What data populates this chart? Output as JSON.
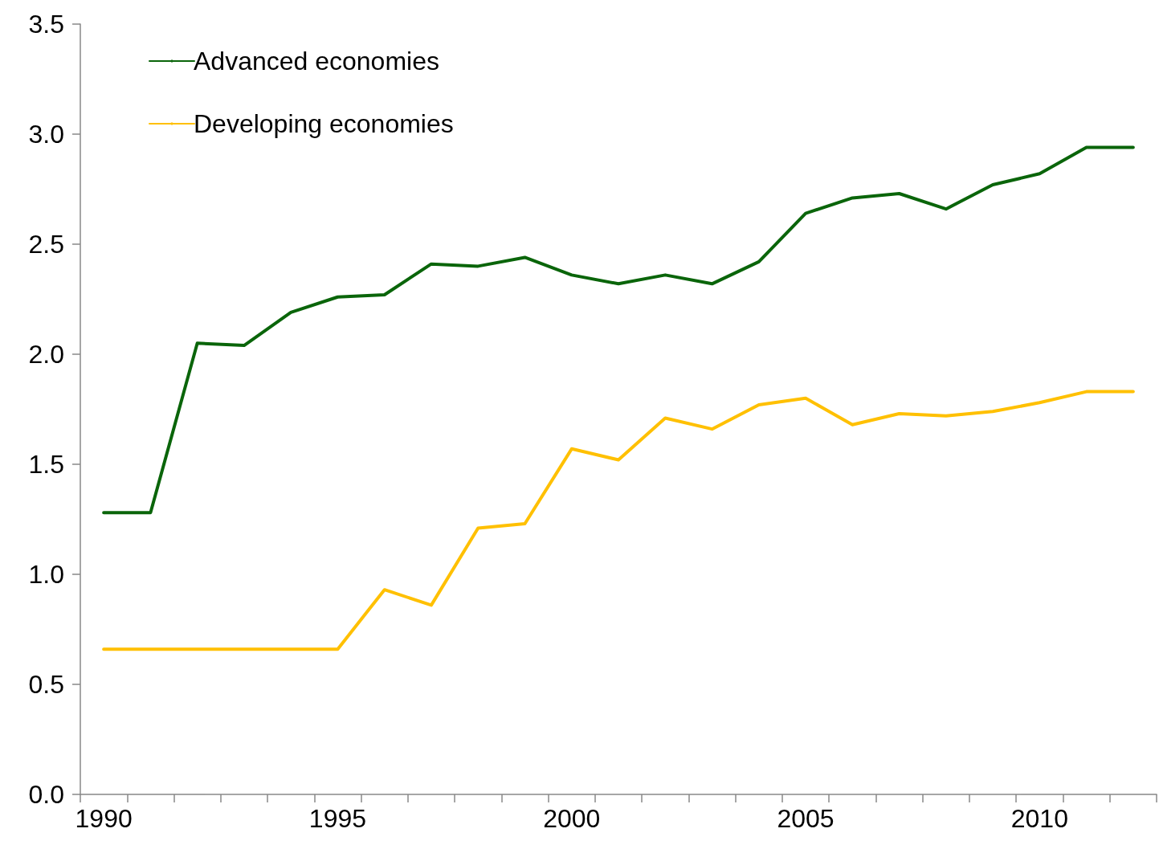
{
  "chart_data": {
    "type": "line",
    "categories": [
      "1990",
      null,
      null,
      null,
      null,
      "1995",
      null,
      null,
      null,
      null,
      "2000",
      null,
      null,
      null,
      null,
      "2005",
      null,
      null,
      null,
      null,
      "2010",
      null,
      null
    ],
    "series": [
      {
        "name": "Advanced economies",
        "color": "#0a650a",
        "values": [
          1.28,
          1.28,
          2.05,
          2.04,
          2.19,
          2.26,
          2.27,
          2.41,
          2.4,
          2.44,
          2.36,
          2.32,
          2.36,
          2.32,
          2.42,
          2.64,
          2.71,
          2.73,
          2.66,
          2.77,
          2.82,
          2.94,
          2.94
        ]
      },
      {
        "name": "Developing economies",
        "color": "#ffc000",
        "values": [
          0.66,
          0.66,
          0.66,
          0.66,
          0.66,
          0.66,
          0.93,
          0.86,
          1.21,
          1.23,
          1.57,
          1.52,
          1.71,
          1.66,
          1.77,
          1.8,
          1.68,
          1.73,
          1.72,
          1.74,
          1.78,
          1.83,
          1.83
        ]
      }
    ],
    "ylim": [
      0,
      3.5
    ],
    "yticks": [
      {
        "value": 0,
        "label": "0.0"
      },
      {
        "value": 0.5,
        "label": "0.5"
      },
      {
        "value": 1,
        "label": "1.0"
      },
      {
        "value": 1.5,
        "label": "1.5"
      },
      {
        "value": 2,
        "label": "2.0"
      },
      {
        "value": 2.5,
        "label": "2.5"
      },
      {
        "value": 3,
        "label": "3.0"
      },
      {
        "value": 3.5,
        "label": "3.5"
      }
    ],
    "grid": false,
    "legend": "top left",
    "marker": "none",
    "line_style": "solid"
  }
}
